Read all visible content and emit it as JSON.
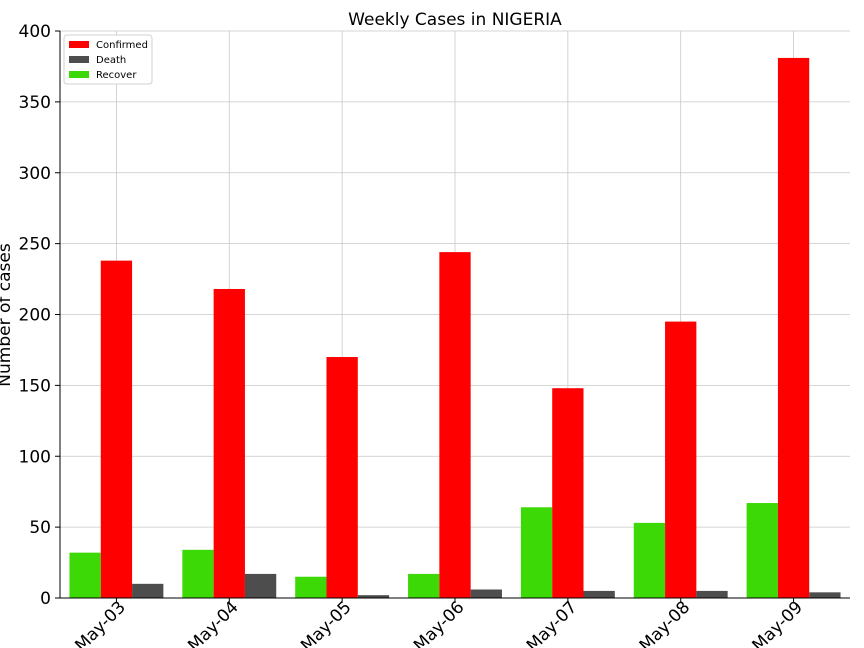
{
  "chart_data": {
    "type": "bar",
    "title": "Weekly Cases in NIGERIA",
    "xlabel": "",
    "ylabel": "Number of cases",
    "categories": [
      "May-03",
      "May-04",
      "May-05",
      "May-06",
      "May-07",
      "May-08",
      "May-09"
    ],
    "series": [
      {
        "name": "Recover",
        "color": "#3dd906",
        "values": [
          32,
          34,
          15,
          17,
          64,
          53,
          67
        ]
      },
      {
        "name": "Confirmed",
        "color": "#ff0000",
        "values": [
          238,
          218,
          170,
          244,
          148,
          195,
          381
        ]
      },
      {
        "name": "Death",
        "color": "#4d4d4d",
        "values": [
          10,
          17,
          2,
          6,
          5,
          5,
          4
        ]
      }
    ],
    "legend_order": [
      "Confirmed",
      "Death",
      "Recover"
    ],
    "legend_position": "top-left",
    "ylim": [
      0,
      400
    ],
    "yticks": [
      0,
      50,
      100,
      150,
      200,
      250,
      300,
      350,
      400
    ],
    "grid": true
  }
}
